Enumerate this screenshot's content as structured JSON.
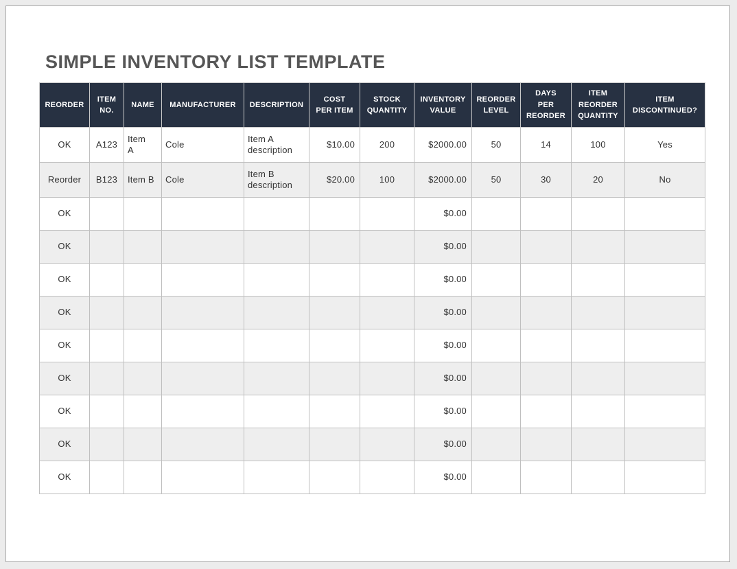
{
  "page": {
    "title": "SIMPLE INVENTORY LIST TEMPLATE"
  },
  "colors": {
    "canvas_bg": "#ececec",
    "page_border": "#a6a6a6",
    "title_text": "#565656",
    "header_bg": "#273142",
    "header_text": "#ffffff",
    "row_alt_bg": "#eeeeee",
    "grid_line": "#bfbfbf",
    "body_text": "#333333"
  },
  "table": {
    "columns": [
      {
        "id": "reorder",
        "label": "REORDER",
        "width": 73,
        "align": "center"
      },
      {
        "id": "item-no",
        "label": "ITEM\nNO.",
        "width": 50,
        "align": "center"
      },
      {
        "id": "name",
        "label": "NAME",
        "width": 55,
        "align": "left"
      },
      {
        "id": "manufacturer",
        "label": "MANUFACTURER",
        "width": 120,
        "align": "left"
      },
      {
        "id": "description",
        "label": "DESCRIPTION",
        "width": 95,
        "align": "left"
      },
      {
        "id": "cost-per-item",
        "label": "COST\nPER ITEM",
        "width": 74,
        "align": "right"
      },
      {
        "id": "stock-quantity",
        "label": "STOCK\nQUANTITY",
        "width": 79,
        "align": "center"
      },
      {
        "id": "inventory-value",
        "label": "INVENTORY\nVALUE",
        "width": 84,
        "align": "right"
      },
      {
        "id": "reorder-level",
        "label": "REORDER\nLEVEL",
        "width": 71,
        "align": "center"
      },
      {
        "id": "days-per-reorder",
        "label": "DAYS\nPER\nREORDER",
        "width": 74,
        "align": "center"
      },
      {
        "id": "item-reorder-quantity",
        "label": "ITEM\nREORDER\nQUANTITY",
        "width": 78,
        "align": "center"
      },
      {
        "id": "item-discontinued",
        "label": "ITEM\nDISCONTINUED?",
        "width": 117,
        "align": "center"
      }
    ],
    "rows": [
      [
        "OK",
        "A123",
        "Item\nA",
        "Cole",
        "Item A\ndescription",
        "$10.00",
        "200",
        "$2000.00",
        "50",
        "14",
        "100",
        "Yes"
      ],
      [
        "Reorder",
        "B123",
        "Item B",
        "Cole",
        "Item B\ndescription",
        "$20.00",
        "100",
        "$2000.00",
        "50",
        "30",
        "20",
        "No"
      ],
      [
        "OK",
        "",
        "",
        "",
        "",
        "",
        "",
        "$0.00",
        "",
        "",
        "",
        ""
      ],
      [
        "OK",
        "",
        "",
        "",
        "",
        "",
        "",
        "$0.00",
        "",
        "",
        "",
        ""
      ],
      [
        "OK",
        "",
        "",
        "",
        "",
        "",
        "",
        "$0.00",
        "",
        "",
        "",
        ""
      ],
      [
        "OK",
        "",
        "",
        "",
        "",
        "",
        "",
        "$0.00",
        "",
        "",
        "",
        ""
      ],
      [
        "OK",
        "",
        "",
        "",
        "",
        "",
        "",
        "$0.00",
        "",
        "",
        "",
        ""
      ],
      [
        "OK",
        "",
        "",
        "",
        "",
        "",
        "",
        "$0.00",
        "",
        "",
        "",
        ""
      ],
      [
        "OK",
        "",
        "",
        "",
        "",
        "",
        "",
        "$0.00",
        "",
        "",
        "",
        ""
      ],
      [
        "OK",
        "",
        "",
        "",
        "",
        "",
        "",
        "$0.00",
        "",
        "",
        "",
        ""
      ],
      [
        "OK",
        "",
        "",
        "",
        "",
        "",
        "",
        "$0.00",
        "",
        "",
        "",
        ""
      ]
    ]
  }
}
